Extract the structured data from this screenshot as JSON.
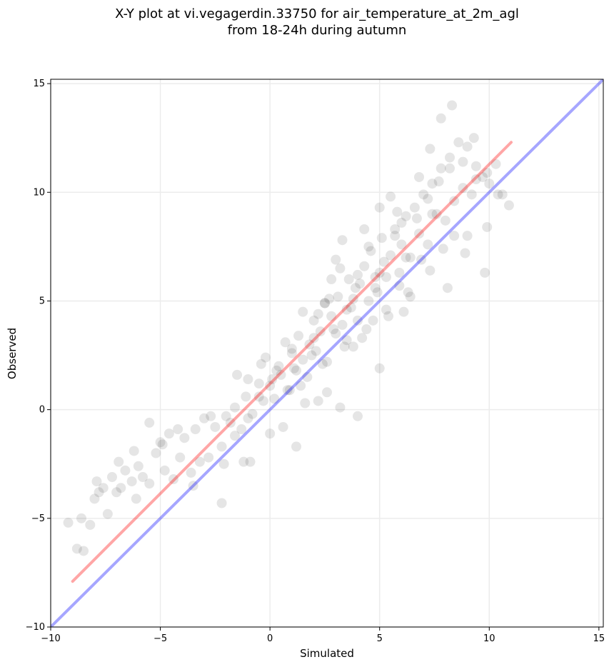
{
  "chart_data": {
    "type": "scatter",
    "title_lines": [
      "X-Y plot at vi.vegagerdin.33750 for air_temperature_at_2m_agl",
      "from 18-24h during autumn"
    ],
    "xlabel": "Simulated",
    "ylabel": "Observed",
    "xlim": [
      -10,
      15.2
    ],
    "ylim": [
      -10,
      15.2
    ],
    "xticks": [
      -10,
      -5,
      0,
      5,
      10,
      15
    ],
    "yticks": [
      -10,
      -5,
      0,
      5,
      10,
      15
    ],
    "xtick_labels": [
      "−10",
      "−5",
      "0",
      "5",
      "10",
      "15"
    ],
    "ytick_labels": [
      "−10",
      "−5",
      "0",
      "5",
      "10",
      "15"
    ],
    "grid": true,
    "point_color": "#000000",
    "point_alpha": 0.1,
    "series": [
      {
        "kind": "points",
        "x": [
          -9.2,
          -8.8,
          -8.6,
          -8.2,
          -8.0,
          -7.9,
          -7.6,
          -7.4,
          -7.2,
          -7.0,
          -6.8,
          -6.6,
          -6.3,
          -6.1,
          -6.0,
          -5.8,
          -5.5,
          -5.2,
          -5.0,
          -4.8,
          -4.6,
          -4.4,
          -4.1,
          -3.9,
          -3.6,
          -3.4,
          -3.2,
          -3.0,
          -2.8,
          -2.5,
          -2.2,
          -2.0,
          -1.8,
          -1.6,
          -1.3,
          -1.1,
          -1.0,
          -0.8,
          -0.5,
          -0.3,
          -0.2,
          0.0,
          0.2,
          0.4,
          0.5,
          0.7,
          0.9,
          1.0,
          1.2,
          1.3,
          1.5,
          1.7,
          1.8,
          2.0,
          2.1,
          2.3,
          2.5,
          2.6,
          2.8,
          3.0,
          3.1,
          3.3,
          3.5,
          3.6,
          3.8,
          4.0,
          4.1,
          4.3,
          4.5,
          4.6,
          4.8,
          5.0,
          5.1,
          5.3,
          5.5,
          5.7,
          5.9,
          6.0,
          6.2,
          6.4,
          6.6,
          6.8,
          7.0,
          7.2,
          7.4,
          7.6,
          7.8,
          8.0,
          8.2,
          8.4,
          8.6,
          8.8,
          9.0,
          9.2,
          9.4,
          9.7,
          10.0,
          10.3,
          10.6,
          10.9,
          -8.5,
          -7.8,
          -6.9,
          -6.2,
          -5.5,
          -4.9,
          -4.2,
          -3.5,
          -2.7,
          -2.1,
          -1.5,
          -0.9,
          -0.4,
          0.1,
          0.6,
          1.1,
          1.6,
          2.0,
          2.4,
          2.9,
          3.4,
          3.9,
          4.4,
          4.9,
          5.4,
          5.9,
          6.4,
          6.9,
          7.4,
          7.9,
          8.4,
          8.9,
          9.4,
          9.9,
          10.4,
          -1.6,
          -1.0,
          -0.5,
          0.3,
          0.8,
          1.4,
          1.9,
          2.2,
          2.7,
          3.2,
          3.7,
          4.2,
          4.7,
          5.2,
          5.7,
          6.2,
          6.7,
          7.2,
          7.7,
          8.2,
          1.0,
          1.5,
          2.5,
          3.0,
          3.5,
          4.0,
          4.5,
          5.0,
          5.5,
          6.0,
          2.2,
          2.8,
          3.3,
          3.8,
          4.3,
          4.8,
          5.3,
          5.8,
          6.3,
          6.8,
          7.3,
          7.8,
          8.3,
          8.8,
          9.3,
          9.8,
          5.0,
          6.1,
          7.3,
          8.1,
          9.0,
          9.9,
          4.0,
          3.2,
          2.6,
          -2.2,
          -1.2,
          0.0,
          1.2
        ],
        "y": [
          -5.2,
          -6.4,
          -5.0,
          -5.3,
          -4.1,
          -3.3,
          -3.6,
          -4.8,
          -3.1,
          -3.8,
          -3.6,
          -2.8,
          -3.3,
          -4.1,
          -2.6,
          -3.1,
          -3.4,
          -2.0,
          -1.5,
          -2.8,
          -1.1,
          -3.2,
          -2.2,
          -1.3,
          -2.9,
          -0.9,
          -2.4,
          -0.4,
          -2.2,
          -0.8,
          -1.7,
          -0.3,
          -0.6,
          0.1,
          -0.9,
          0.6,
          1.4,
          -0.2,
          1.2,
          0.4,
          2.4,
          1.1,
          0.5,
          2.0,
          1.6,
          3.1,
          0.9,
          2.6,
          1.8,
          3.4,
          2.3,
          1.5,
          3.0,
          4.1,
          2.7,
          3.6,
          4.9,
          2.2,
          4.3,
          3.5,
          5.2,
          3.9,
          4.6,
          6.0,
          5.1,
          4.1,
          5.8,
          6.6,
          5.0,
          7.3,
          5.6,
          6.3,
          7.9,
          6.1,
          7.1,
          8.3,
          5.7,
          7.6,
          8.9,
          7.0,
          9.3,
          8.1,
          9.9,
          7.6,
          10.4,
          9.0,
          11.1,
          8.7,
          11.6,
          9.6,
          12.3,
          10.2,
          12.1,
          9.9,
          11.2,
          10.7,
          10.4,
          11.3,
          9.9,
          9.4,
          -6.5,
          -3.8,
          -2.4,
          -1.9,
          -0.6,
          -1.6,
          -0.9,
          -3.5,
          -0.3,
          -2.5,
          1.6,
          -2.4,
          2.1,
          1.4,
          -0.8,
          1.9,
          0.3,
          3.3,
          2.1,
          3.7,
          2.9,
          5.6,
          3.7,
          5.4,
          4.3,
          6.3,
          5.2,
          6.9,
          9.0,
          7.4,
          8.0,
          7.2,
          10.6,
          8.4,
          9.9,
          -1.2,
          -0.4,
          0.6,
          1.8,
          0.9,
          1.1,
          2.5,
          4.4,
          5.1,
          6.5,
          4.7,
          3.3,
          4.1,
          6.8,
          8.0,
          7.0,
          8.8,
          9.7,
          10.5,
          11.1,
          2.8,
          4.5,
          4.9,
          6.9,
          3.2,
          6.2,
          7.5,
          9.3,
          9.8,
          8.6,
          0.4,
          6.0,
          7.8,
          2.9,
          8.3,
          6.1,
          4.6,
          9.1,
          5.4,
          10.7,
          12.0,
          13.4,
          14.0,
          11.4,
          12.5,
          6.3,
          1.9,
          4.5,
          6.4,
          5.6,
          8.0,
          10.9,
          -0.3,
          0.1,
          0.8,
          -4.3,
          -2.4,
          -1.1,
          -1.7
        ]
      },
      {
        "kind": "line",
        "color": "#ff0000",
        "alpha": 0.35,
        "x": [
          -9,
          11
        ],
        "y": [
          -7.9,
          12.3
        ]
      },
      {
        "kind": "line",
        "color": "#0000ff",
        "alpha": 0.35,
        "x": [
          -10,
          15.2
        ],
        "y": [
          -10,
          15.2
        ]
      }
    ]
  }
}
